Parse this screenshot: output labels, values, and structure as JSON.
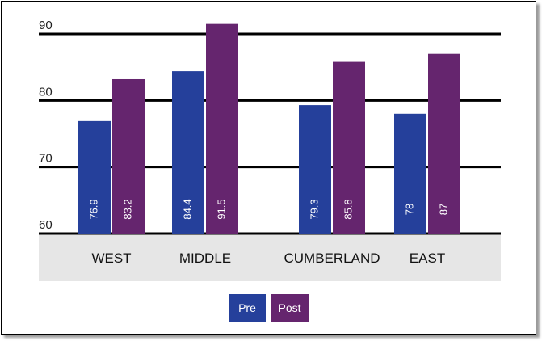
{
  "chart_data": {
    "type": "bar",
    "categories": [
      "WEST",
      "MIDDLE",
      "CUMBERLAND",
      "EAST"
    ],
    "series": [
      {
        "name": "Pre",
        "color": "#25409b",
        "values": [
          76.9,
          84.4,
          79.3,
          78
        ],
        "labels": [
          "76.9",
          "84.4",
          "79.3",
          "78"
        ]
      },
      {
        "name": "Post",
        "color": "#65256e",
        "values": [
          83.2,
          91.5,
          85.8,
          87
        ],
        "labels": [
          "83.2",
          "91.5",
          "85.8",
          "87"
        ]
      }
    ],
    "yticks": [
      60,
      70,
      80,
      90
    ],
    "ylim": [
      60,
      92
    ],
    "grid": true,
    "legend_position": "bottom-center"
  }
}
